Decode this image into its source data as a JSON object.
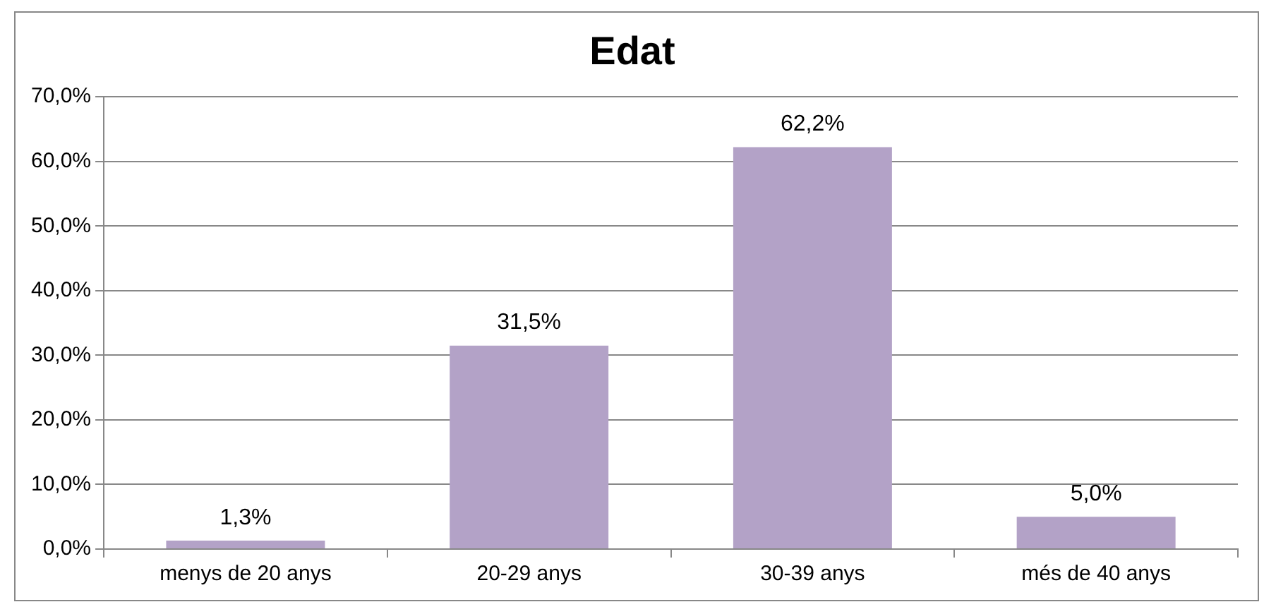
{
  "chart_data": {
    "type": "bar",
    "title": "Edat",
    "categories": [
      "menys de 20 anys",
      "20-29 anys",
      "30-39 anys",
      "més de 40 anys"
    ],
    "values": [
      1.3,
      31.5,
      62.2,
      5.0
    ],
    "value_labels": [
      "1,3%",
      "31,5%",
      "62,2%",
      "5,0%"
    ],
    "color": "#b3a2c7",
    "ylim": [
      0,
      70
    ],
    "yticks": [
      {
        "value": 0,
        "label": "0,0%"
      },
      {
        "value": 10,
        "label": "10,0%"
      },
      {
        "value": 20,
        "label": "20,0%"
      },
      {
        "value": 30,
        "label": "30,0%"
      },
      {
        "value": 40,
        "label": "40,0%"
      },
      {
        "value": 50,
        "label": "50,0%"
      },
      {
        "value": 60,
        "label": "60,0%"
      },
      {
        "value": 70,
        "label": "70,0%"
      }
    ],
    "grid": "y",
    "legend": false
  }
}
